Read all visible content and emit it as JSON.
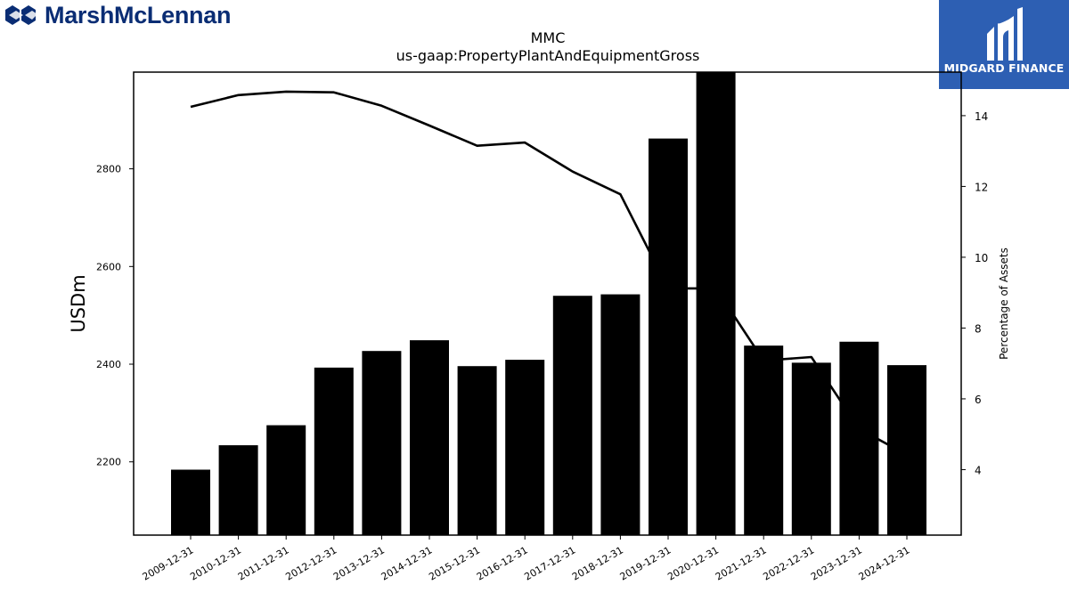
{
  "header": {
    "left_logo_text": "MarshMcLennan",
    "right_logo_text": "MIDGARD FINANCE",
    "right_logo_bg": "#2d5fb3",
    "left_logo_color": "#0a2d74"
  },
  "chart_data": {
    "type": "bar",
    "title": "MMC",
    "subtitle": "us-gaap:PropertyPlantAndEquipmentGross",
    "ylabel": "USDm",
    "y2label": "Percentage of Assets",
    "ylim": [
      2050,
      2998
    ],
    "y2lim": [
      2.15,
      15.23
    ],
    "yticks": [
      2200,
      2400,
      2600,
      2800
    ],
    "y2ticks": [
      4,
      6,
      8,
      10,
      12,
      14
    ],
    "categories": [
      "2009-12-31",
      "2010-12-31",
      "2011-12-31",
      "2012-12-31",
      "2013-12-31",
      "2014-12-31",
      "2015-12-31",
      "2016-12-31",
      "2017-12-31",
      "2018-12-31",
      "2019-12-31",
      "2020-12-31",
      "2021-12-31",
      "2022-12-31",
      "2023-12-31",
      "2024-12-31"
    ],
    "series": [
      {
        "type": "bar",
        "axis": "left",
        "color": "#000000",
        "values": [
          2184,
          2234,
          2275,
          2393,
          2427,
          2449,
          2396,
          2409,
          2540,
          2543,
          2862,
          2998,
          2438,
          2403,
          2446,
          2398
        ]
      },
      {
        "type": "line",
        "axis": "right",
        "color": "#000000",
        "values": [
          14.25,
          14.58,
          14.68,
          14.66,
          14.28,
          13.72,
          13.15,
          13.24,
          12.42,
          11.78,
          9.12,
          9.12,
          7.08,
          7.18,
          5.15,
          4.42
        ]
      }
    ],
    "grid": false,
    "legend": "none"
  }
}
